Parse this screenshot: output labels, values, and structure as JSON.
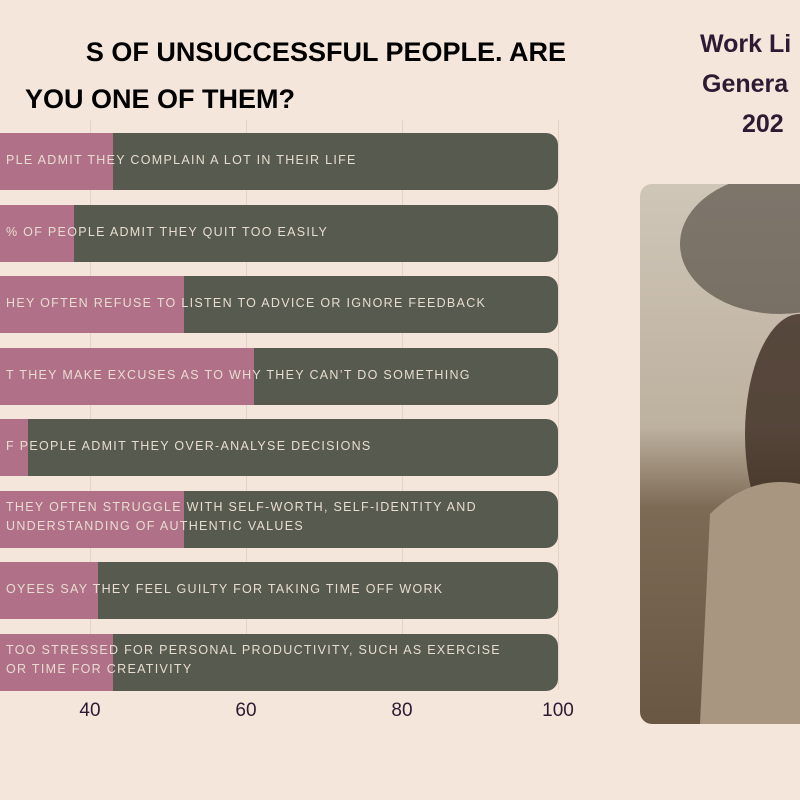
{
  "title": {
    "line1": "S OF UNSUCCESSFUL PEOPLE. ARE",
    "line2": "YOU ONE OF THEM?"
  },
  "side_title": {
    "line1": "Work Li",
    "line2": "Genera",
    "line3": "202"
  },
  "colors": {
    "background": "#f5e6dc",
    "highlight": "#b07088",
    "remainder": "#575a4e",
    "title": "#000000",
    "side_title": "#2e1a33"
  },
  "photo": {
    "description_icon": "woman-portrait-photo"
  },
  "chart_data": {
    "type": "bar",
    "orientation": "horizontal",
    "stacked": true,
    "categories": [
      "PLE ADMIT THEY COMPLAIN A LOT IN THEIR LIFE",
      "% OF PEOPLE ADMIT THEY QUIT TOO EASILY",
      "HEY OFTEN REFUSE TO LISTEN TO ADVICE OR IGNORE FEEDBACK",
      "T THEY MAKE EXCUSES AS TO WHY THEY CAN’T DO SOMETHING",
      "F PEOPLE ADMIT THEY OVER-ANALYSE DECISIONS",
      "THEY OFTEN STRUGGLE WITH SELF-WORTH, SELF-IDENTITY AND|UNDERSTANDING OF AUTHENTIC VALUES",
      "OYEES SAY THEY FEEL GUILTY FOR TAKING TIME OFF WORK",
      "TOO STRESSED FOR PERSONAL PRODUCTIVITY, SUCH AS EXERCISE|OR TIME FOR CREATIVITY"
    ],
    "values": [
      43,
      38,
      52,
      61,
      32,
      52,
      41,
      43
    ],
    "xlim": [
      0,
      100
    ],
    "xticks": [
      "40",
      "60",
      "80",
      "100"
    ],
    "xtick_values": [
      40,
      60,
      80,
      100
    ],
    "grid": true
  }
}
